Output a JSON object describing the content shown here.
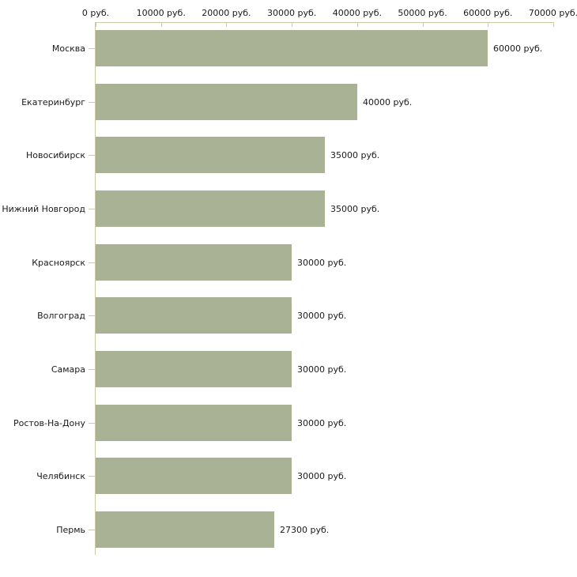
{
  "chart_data": {
    "type": "bar",
    "orientation": "horizontal",
    "title": "",
    "categories": [
      "Москва",
      "Екатеринбург",
      "Новосибирск",
      "Нижний Новгород",
      "Красноярск",
      "Волгоград",
      "Самара",
      "Ростов-На-Дону",
      "Челябинск",
      "Пермь"
    ],
    "values": [
      60000,
      40000,
      35000,
      35000,
      30000,
      30000,
      30000,
      30000,
      30000,
      27300
    ],
    "value_labels": [
      "60000 руб.",
      "40000 руб.",
      "35000 руб.",
      "35000 руб.",
      "30000 руб.",
      "30000 руб.",
      "30000 руб.",
      "30000 руб.",
      "30000 руб.",
      "27300 руб."
    ],
    "x_axis": {
      "position": "top",
      "min": 0,
      "max": 70000,
      "tick_interval": 10000,
      "tick_labels": [
        "0 руб.",
        "10000 руб.",
        "20000 руб.",
        "30000 руб.",
        "40000 руб.",
        "50000 руб.",
        "60000 руб.",
        "70000 руб."
      ]
    },
    "ylabel": "",
    "xlabel": "",
    "grid": false,
    "legend": false,
    "colors": {
      "bar": "#aab296",
      "axis": "#c9c9a3",
      "category_tick": "#c9c9b8",
      "text": "#1a1a1a",
      "background": "#ffffff"
    }
  }
}
